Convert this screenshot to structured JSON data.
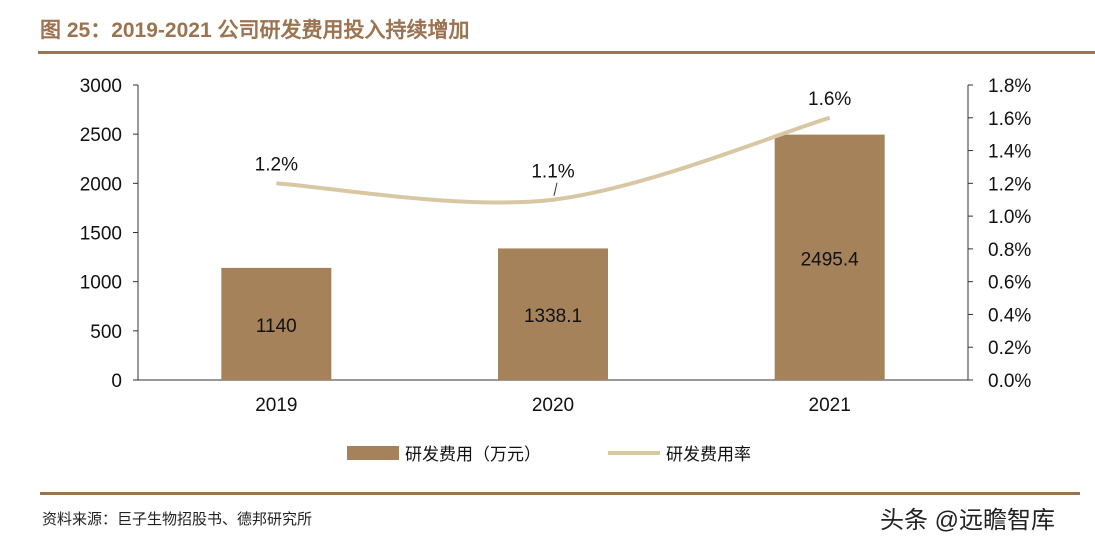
{
  "title": "图 25：2019-2021 公司研发费用投入持续增加",
  "source": "资料来源：巨子生物招股书、德邦研究所",
  "watermark": "头条 @远瞻智库",
  "chart_data": {
    "type": "bar+line",
    "categories": [
      "2019",
      "2020",
      "2021"
    ],
    "series": [
      {
        "name": "研发费用（万元）",
        "type": "bar",
        "axis": "left",
        "values": [
          1140,
          1338.1,
          2495.4
        ],
        "labels": [
          "1140",
          "1338.1",
          "2495.4"
        ],
        "color": "#a5825a"
      },
      {
        "name": "研发费用率",
        "type": "line",
        "axis": "right",
        "values": [
          1.2,
          1.1,
          1.6
        ],
        "labels": [
          "1.2%",
          "1.1%",
          "1.6%"
        ],
        "color": "#d8c7a3"
      }
    ],
    "left_axis": {
      "min": 0,
      "max": 3000,
      "ticks": [
        "0",
        "500",
        "1000",
        "1500",
        "2000",
        "2500",
        "3000"
      ]
    },
    "right_axis": {
      "min": 0,
      "max": 1.8,
      "ticks": [
        "0.0%",
        "0.2%",
        "0.4%",
        "0.6%",
        "0.8%",
        "1.0%",
        "1.2%",
        "1.4%",
        "1.6%",
        "1.8%"
      ]
    },
    "grid": false,
    "legend": "bottom"
  }
}
